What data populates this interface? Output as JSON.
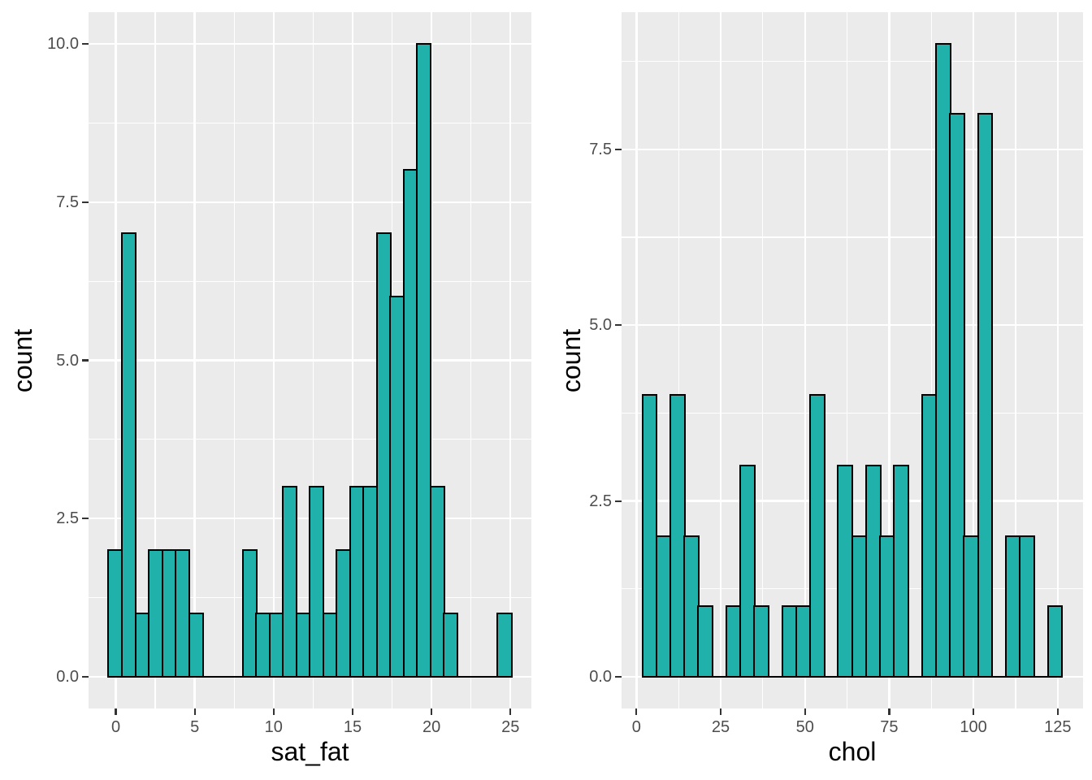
{
  "style": {
    "page_bg": "#FFFFFF",
    "panel_bg": "#EBEBEB",
    "grid_major_color": "#FFFFFF",
    "grid_minor_color": "#FFFFFF",
    "bar_fill": "#20B2AA",
    "bar_stroke": "#000000",
    "tick_mark_color": "#333333",
    "tick_label_color": "#4D4D4D",
    "axis_title_color": "#000000"
  },
  "chart_data": [
    {
      "type": "bar",
      "subtype": "histogram",
      "title": "",
      "xlabel": "sat_fat",
      "ylabel": "count",
      "bin_start": -0.45,
      "bin_width": 0.85,
      "counts": [
        2,
        7,
        1,
        2,
        2,
        2,
        1,
        0,
        0,
        0,
        2,
        1,
        1,
        3,
        1,
        3,
        1,
        2,
        3,
        3,
        7,
        6,
        8,
        10,
        3,
        1,
        0,
        0,
        0,
        1
      ],
      "xlim": [
        -1.725,
        26.325
      ],
      "ylim": [
        -0.5,
        10.5
      ],
      "x_ticks": [
        0,
        5,
        10,
        15,
        20,
        25
      ],
      "x_tick_labels": [
        "0",
        "5",
        "10",
        "15",
        "20",
        "25"
      ],
      "x_minor_ticks": [
        2.5,
        7.5,
        12.5,
        17.5,
        22.5
      ],
      "y_ticks": [
        0,
        2.5,
        5,
        7.5,
        10
      ],
      "y_tick_labels": [
        "0.0",
        "2.5",
        "5.0",
        "7.5",
        "10.0"
      ],
      "y_minor_ticks": [
        1.25,
        3.75,
        6.25,
        8.75
      ],
      "grid": true,
      "legend": "none"
    },
    {
      "type": "bar",
      "subtype": "histogram",
      "title": "",
      "xlabel": "chol",
      "ylabel": "count",
      "bin_start": 1.8,
      "bin_width": 4.15,
      "counts": [
        4,
        2,
        4,
        2,
        1,
        0,
        1,
        3,
        1,
        0,
        1,
        1,
        4,
        0,
        3,
        2,
        3,
        2,
        3,
        0,
        4,
        9,
        8,
        2,
        8,
        0,
        2,
        2,
        0,
        1
      ],
      "xlim": [
        -4.425,
        132.525
      ],
      "ylim": [
        -0.45,
        9.45
      ],
      "x_ticks": [
        0,
        25,
        50,
        75,
        100,
        125
      ],
      "x_tick_labels": [
        "0",
        "25",
        "50",
        "75",
        "100",
        "125"
      ],
      "x_minor_ticks": [
        12.5,
        37.5,
        62.5,
        87.5,
        112.5
      ],
      "y_ticks": [
        0,
        2.5,
        5,
        7.5
      ],
      "y_tick_labels": [
        "0.0",
        "2.5",
        "5.0",
        "7.5"
      ],
      "y_minor_ticks": [
        1.25,
        3.75,
        6.25,
        8.75
      ],
      "grid": true,
      "legend": "none"
    }
  ]
}
